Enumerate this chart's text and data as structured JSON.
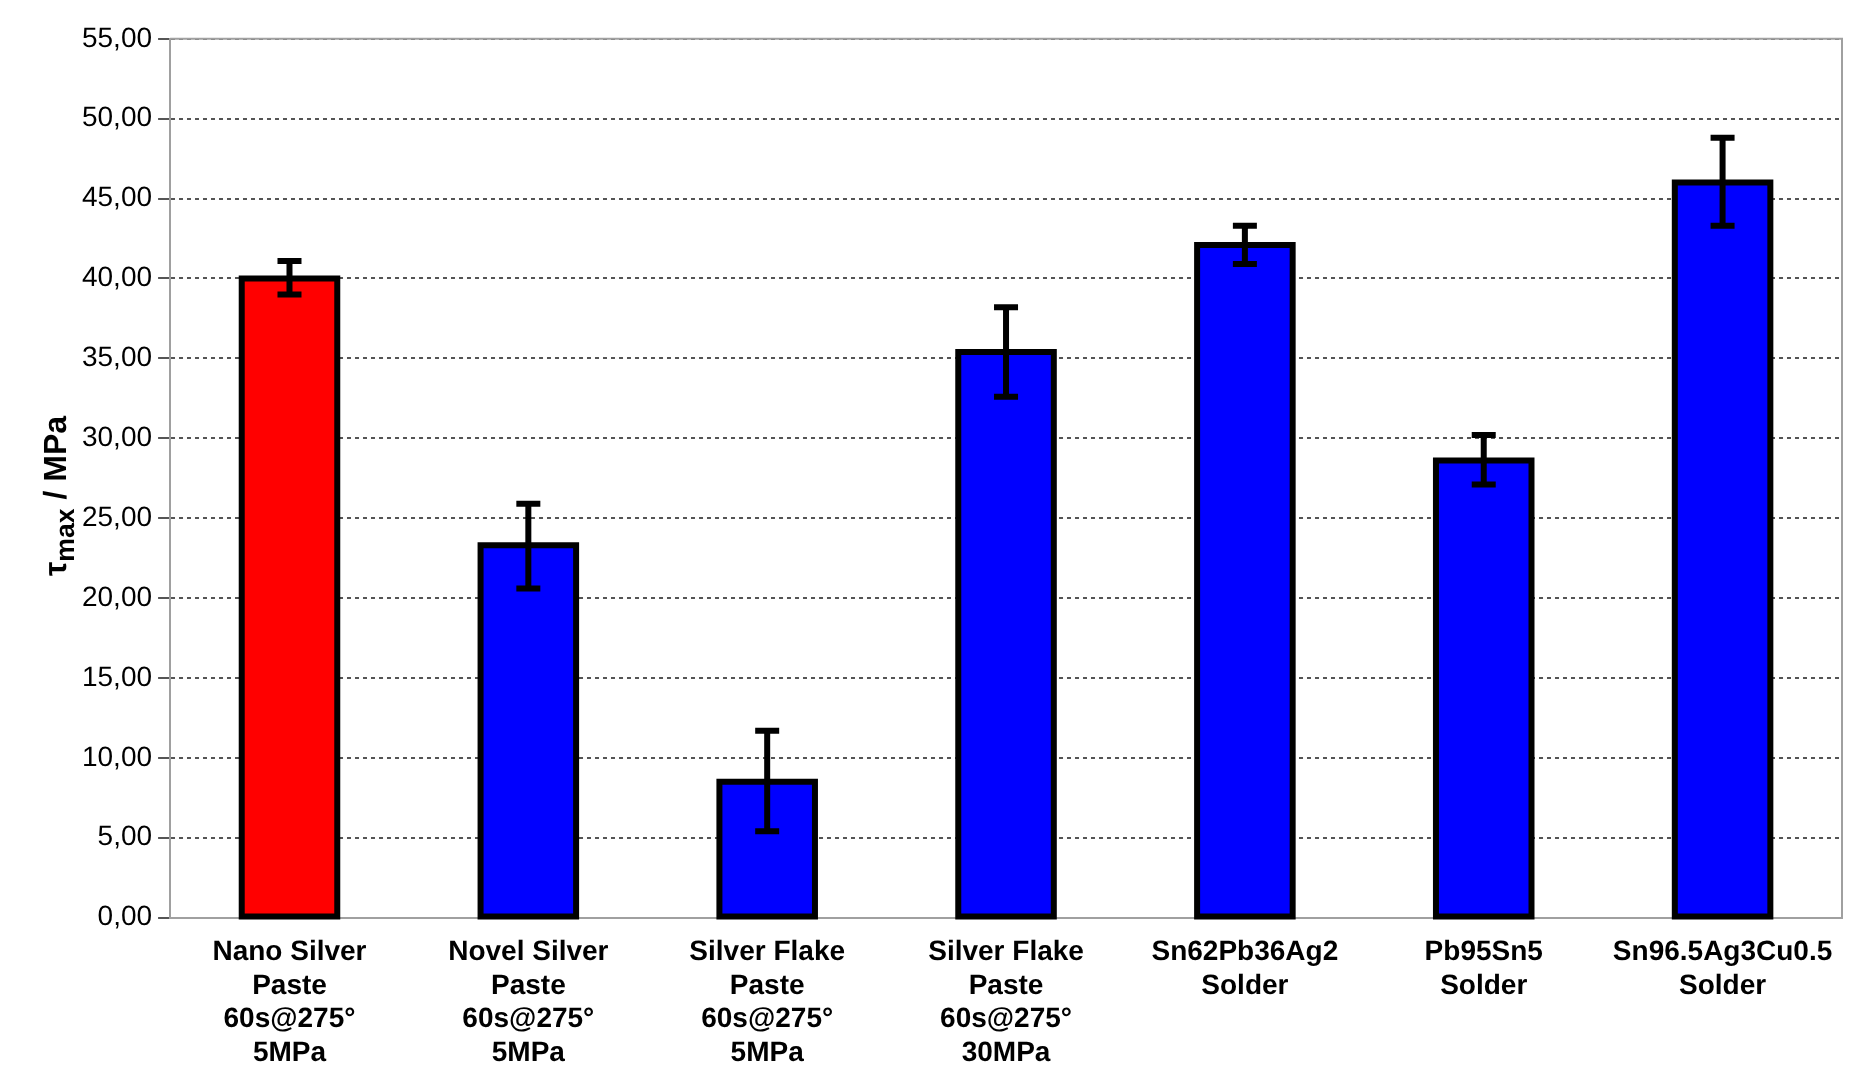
{
  "chart_data": {
    "type": "bar",
    "ylabel": "τ$_{max}$ / MPa",
    "categories": [
      "Nano Silver\nPaste\n60s@275°\n5MPa",
      "Novel Silver\nPaste\n60s@275°\n5MPa",
      "Silver Flake\nPaste\n60s@275°\n5MPa",
      "Silver Flake\nPaste\n60s@275°\n30MPa",
      "Sn62Pb36Ag2\nSolder",
      "Pb95Sn5\nSolder",
      "Sn96.5Ag3Cu0.5\nSolder"
    ],
    "values": [
      40.0,
      23.3,
      8.5,
      35.4,
      42.1,
      28.6,
      46.0
    ],
    "colors": [
      "#ff0000",
      "#0000ff",
      "#0000ff",
      "#0000ff",
      "#0000ff",
      "#0000ff",
      "#0000ff"
    ],
    "errors": [
      [
        39.0,
        41.1
      ],
      [
        20.6,
        25.9
      ],
      [
        5.4,
        11.7
      ],
      [
        32.6,
        38.2
      ],
      [
        40.9,
        43.3
      ],
      [
        27.1,
        30.2
      ],
      [
        43.3,
        48.8
      ]
    ],
    "ylim": [
      0,
      55
    ],
    "yticks": [
      {
        "value": 0,
        "label": "0,00"
      },
      {
        "value": 5,
        "label": "5,00"
      },
      {
        "value": 10,
        "label": "10,00"
      },
      {
        "value": 15,
        "label": "15,00"
      },
      {
        "value": 20,
        "label": "20,00"
      },
      {
        "value": 25,
        "label": "25,00"
      },
      {
        "value": 30,
        "label": "30,00"
      },
      {
        "value": 35,
        "label": "35,00"
      },
      {
        "value": 40,
        "label": "40,00"
      },
      {
        "value": 45,
        "label": "45,00"
      },
      {
        "value": 50,
        "label": "50,00"
      },
      {
        "value": 55,
        "label": "55,00"
      }
    ],
    "grid": "y",
    "legend": false
  }
}
